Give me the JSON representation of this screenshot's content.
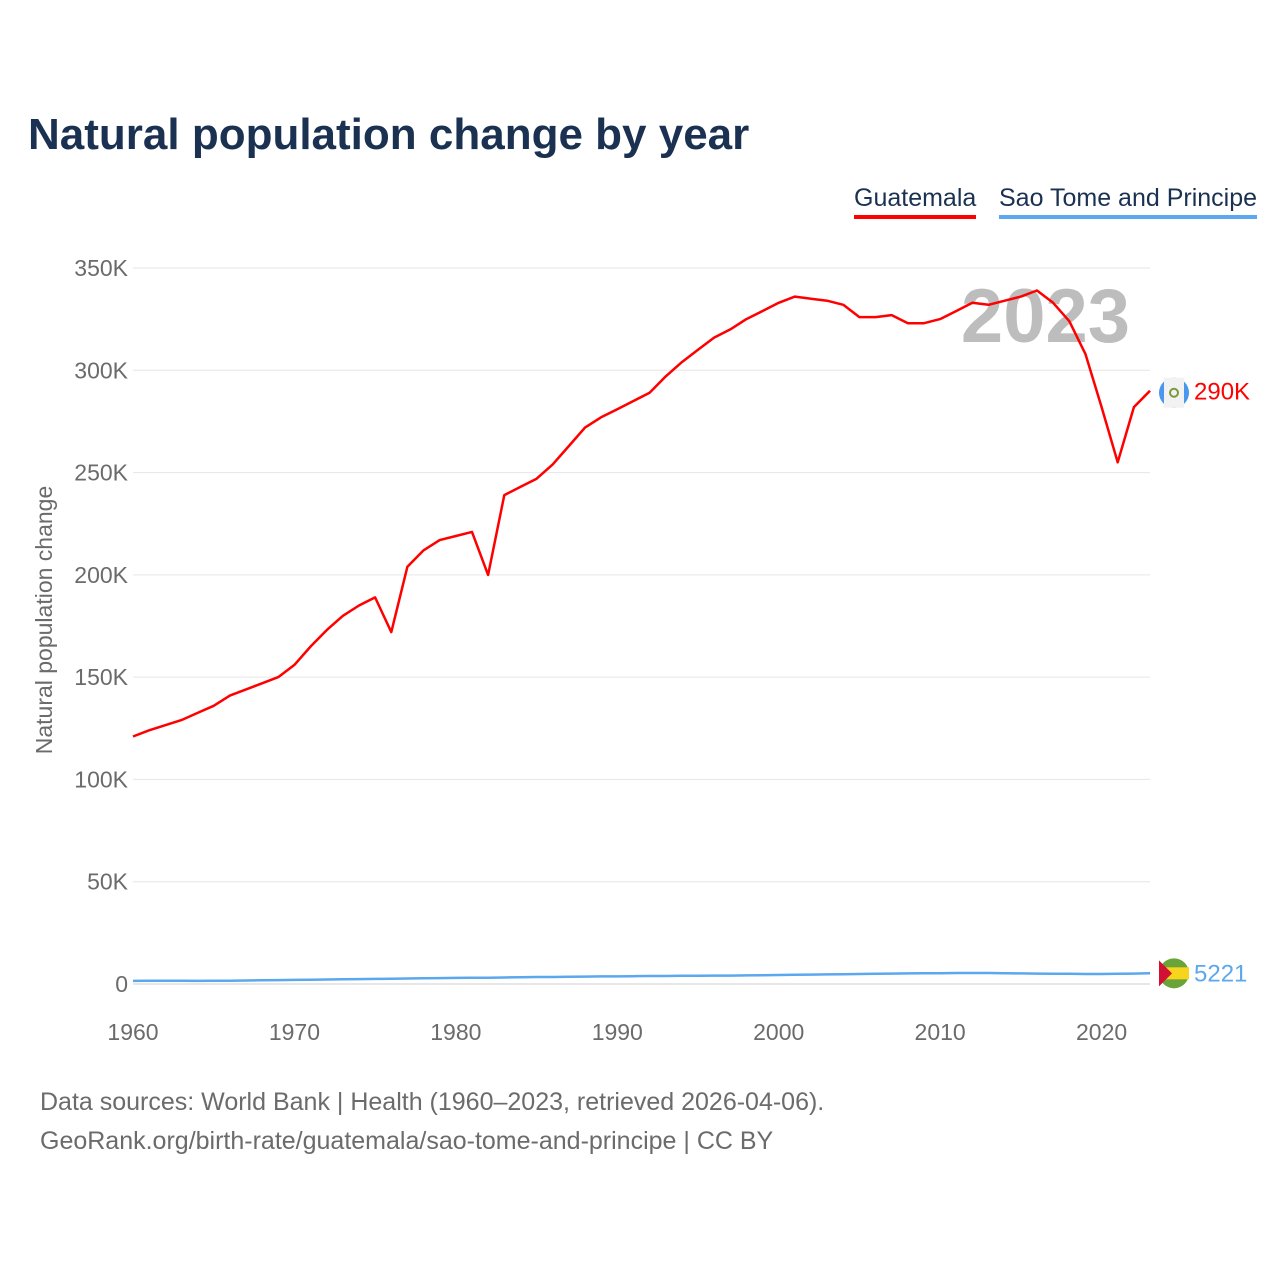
{
  "title": "Natural population change by year",
  "legend": [
    "Guatemala",
    "Sao Tome and Principe"
  ],
  "year_label": "2023",
  "footer": {
    "line1": "Data sources: World Bank | Health (1960–2023, retrieved 2026-04-06).",
    "line2": "GeoRank.org/birth-rate/guatemala/sao-tome-and-principe | CC BY"
  },
  "colors": {
    "guatemala": "#ff0000",
    "sao_tome": "#5ca8ee",
    "title": "#1a3152"
  },
  "chart_data": {
    "type": "line",
    "title": "Natural population change by year",
    "xlabel": "",
    "ylabel": "Natural population change",
    "xlim": [
      1960,
      2023
    ],
    "ylim": [
      0,
      350000
    ],
    "x_ticks": [
      1960,
      1970,
      1980,
      1990,
      2000,
      2010,
      2020
    ],
    "y_ticks": [
      0,
      50000,
      100000,
      150000,
      200000,
      250000,
      300000,
      350000
    ],
    "y_tick_labels": [
      "0",
      "50K",
      "100K",
      "150K",
      "200K",
      "250K",
      "300K",
      "350K"
    ],
    "grid": true,
    "legend_position": "top-right",
    "x_start": 1960,
    "series": [
      {
        "name": "Guatemala",
        "color": "#ff0000",
        "end_label": "290K",
        "values": [
          121000,
          124000,
          126500,
          129000,
          132500,
          136000,
          141000,
          144000,
          147000,
          150000,
          156000,
          165000,
          173000,
          180000,
          185000,
          189000,
          172000,
          204000,
          212000,
          217000,
          219000,
          221000,
          200000,
          239000,
          243000,
          247000,
          254000,
          263000,
          272000,
          277000,
          281000,
          285000,
          289000,
          297000,
          304000,
          310000,
          316000,
          320000,
          325000,
          329000,
          333000,
          336000,
          335000,
          334000,
          332000,
          326000,
          326000,
          327000,
          323000,
          323000,
          325000,
          329000,
          333000,
          332000,
          334000,
          336000,
          339000,
          333000,
          324000,
          308000,
          282000,
          255000,
          282000,
          290000
        ]
      },
      {
        "name": "Sao Tome and Principe",
        "color": "#5ca8ee",
        "end_label": "5221",
        "values": [
          1500,
          1600,
          1600,
          1600,
          1500,
          1600,
          1600,
          1700,
          1800,
          1900,
          2000,
          2100,
          2200,
          2300,
          2400,
          2500,
          2600,
          2700,
          2800,
          2900,
          3000,
          3100,
          3100,
          3200,
          3300,
          3400,
          3400,
          3500,
          3600,
          3700,
          3700,
          3800,
          3900,
          3900,
          4000,
          4000,
          4100,
          4100,
          4200,
          4300,
          4400,
          4500,
          4600,
          4700,
          4800,
          4900,
          5000,
          5100,
          5200,
          5300,
          5300,
          5400,
          5400,
          5400,
          5300,
          5200,
          5100,
          5000,
          5000,
          4900,
          4900,
          5000,
          5100,
          5221
        ]
      }
    ]
  }
}
